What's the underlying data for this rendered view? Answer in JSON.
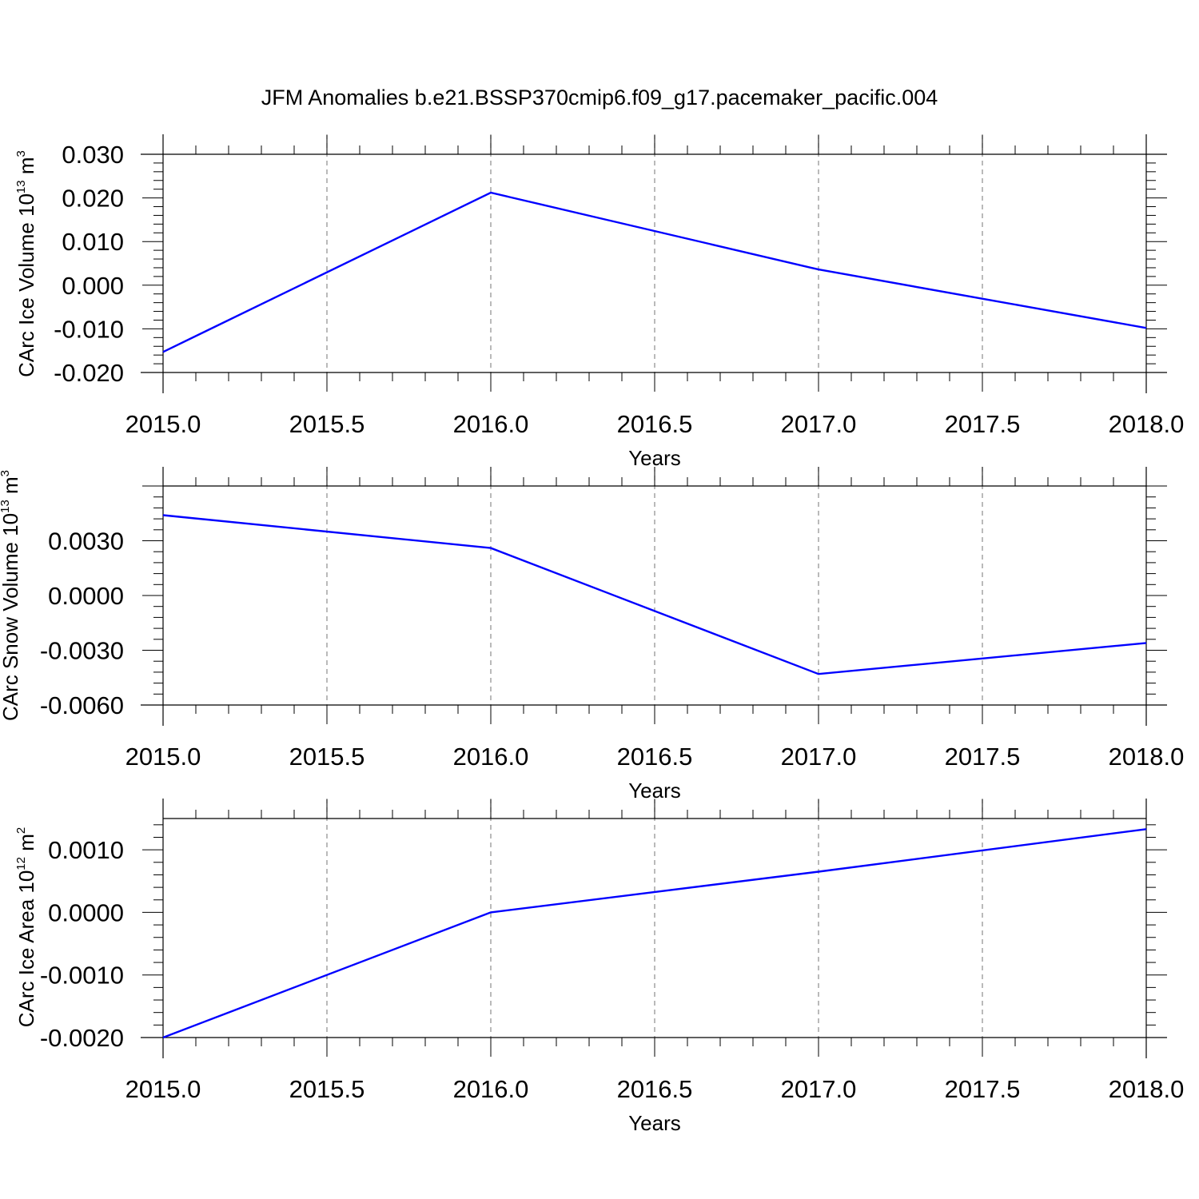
{
  "title": "JFM Anomalies b.e21.BSSP370cmip6.f09_g17.pacemaker_pacific.004",
  "colors": {
    "line": "#0000ff",
    "axis": "#000000",
    "grid": "#8c8c8c"
  },
  "chart_data": [
    {
      "type": "line",
      "xlabel": "Years",
      "ylabel": {
        "text": "CArc Ice Volume 10",
        "exp": "13",
        "unit": " m",
        "unit_exp": "3"
      },
      "x": [
        2015.0,
        2016.0,
        2017.0,
        2018.0
      ],
      "y": [
        -0.0153,
        0.0212,
        0.0036,
        -0.0098
      ],
      "xlim": [
        2015.0,
        2018.0
      ],
      "ylim": [
        -0.02,
        0.03
      ],
      "yticks": [
        -0.02,
        -0.01,
        0.0,
        0.01,
        0.02,
        0.03
      ],
      "ytick_labels": [
        "-0.020",
        "-0.010",
        "0.000",
        "0.010",
        "0.020",
        "0.030"
      ],
      "xticks": [
        2015.0,
        2015.5,
        2016.0,
        2016.5,
        2017.0,
        2017.5,
        2018.0
      ],
      "xtick_labels": [
        "2015.0",
        "2015.5",
        "2016.0",
        "2016.5",
        "2017.0",
        "2017.5",
        "2018.0"
      ],
      "grid": "vertical dashed"
    },
    {
      "type": "line",
      "xlabel": "Years",
      "ylabel": {
        "text": "CArc Snow Volume 10",
        "exp": "13",
        "unit": " m",
        "unit_exp": "3"
      },
      "x": [
        2015.0,
        2016.0,
        2017.0,
        2018.0
      ],
      "y": [
        0.0044,
        0.0026,
        -0.0043,
        -0.0026
      ],
      "xlim": [
        2015.0,
        2018.0
      ],
      "ylim": [
        -0.006,
        0.006
      ],
      "yticks": [
        -0.006,
        -0.003,
        0.0,
        0.003
      ],
      "ytick_labels": [
        "-0.0060",
        "-0.0030",
        "0.0000",
        "0.0030"
      ],
      "xticks": [
        2015.0,
        2015.5,
        2016.0,
        2016.5,
        2017.0,
        2017.5,
        2018.0
      ],
      "xtick_labels": [
        "2015.0",
        "2015.5",
        "2016.0",
        "2016.5",
        "2017.0",
        "2017.5",
        "2018.0"
      ],
      "grid": "vertical dashed"
    },
    {
      "type": "line",
      "xlabel": "Years",
      "ylabel": {
        "text": "CArc Ice Area 10",
        "exp": "12",
        "unit": " m",
        "unit_exp": "2"
      },
      "x": [
        2015.0,
        2016.0,
        2017.0,
        2018.0
      ],
      "y": [
        -0.002,
        0.0,
        0.00065,
        0.00133
      ],
      "xlim": [
        2015.0,
        2018.0
      ],
      "ylim": [
        -0.002,
        0.0015
      ],
      "yticks": [
        -0.002,
        -0.001,
        0.0,
        0.001
      ],
      "ytick_labels": [
        "-0.0020",
        "-0.0010",
        "0.0000",
        "0.0010"
      ],
      "xticks": [
        2015.0,
        2015.5,
        2016.0,
        2016.5,
        2017.0,
        2017.5,
        2018.0
      ],
      "xtick_labels": [
        "2015.0",
        "2015.5",
        "2016.0",
        "2016.5",
        "2017.0",
        "2017.5",
        "2018.0"
      ],
      "grid": "vertical dashed"
    }
  ]
}
